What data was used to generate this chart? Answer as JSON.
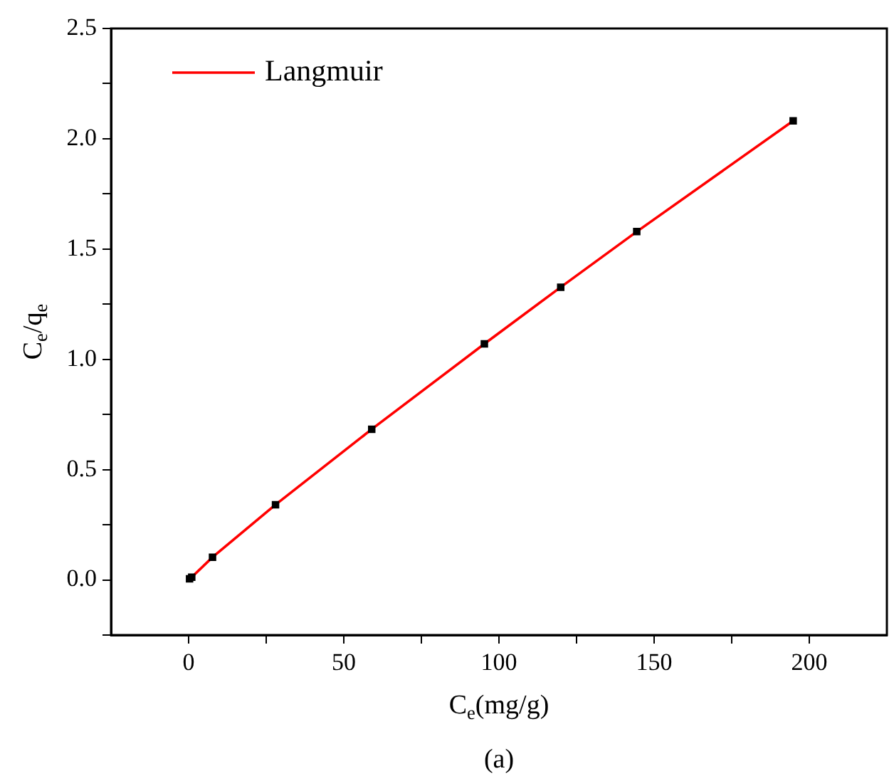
{
  "chart_data": {
    "type": "scatter",
    "xlabel": "C$_{e}$(mg/g)",
    "ylabel": "C$_{e}$/q$_{e}$",
    "annotations": [
      "(a)"
    ],
    "xlim": [
      -25,
      225
    ],
    "xticks": [
      0,
      {
        "value": 25,
        "label": null
      },
      50,
      {
        "value": 75,
        "label": null
      },
      100,
      {
        "value": 125,
        "label": null
      },
      150,
      {
        "value": 175,
        "label": null
      },
      200
    ],
    "ylim": [
      -0.25,
      2.5
    ],
    "yticks": [
      {
        "value": -0.25,
        "label": null
      },
      "0.0",
      {
        "value": 0.25,
        "label": null
      },
      {
        "value": 0.5,
        "label": "0.5"
      },
      {
        "value": 0.75,
        "label": null
      },
      {
        "value": 1,
        "label": "1.0"
      },
      {
        "value": 1.25,
        "label": null
      },
      {
        "value": 1.5,
        "label": "1.5"
      },
      {
        "value": 1.75,
        "label": null
      },
      {
        "value": 2,
        "label": "2.0"
      },
      {
        "value": 2.25,
        "label": null
      },
      {
        "value": 2.5,
        "label": "2.5"
      }
    ],
    "grid": false,
    "legend": "top left",
    "marker": "square",
    "series": [
      {
        "color": "#000000",
        "x": [
          0.3,
          1,
          7.7,
          28,
          59,
          95.3,
          119.9,
          144.4,
          194.8
        ],
        "values": [
          0.005,
          0.012,
          0.103,
          0.341,
          0.683,
          1.07,
          1.327,
          1.579,
          2.081
        ]
      },
      {
        "type": "line",
        "name": "Langmuir",
        "color": "#ff0000",
        "marker": "none",
        "x": [
          0.3,
          1,
          7.7,
          28,
          59,
          95.3,
          119.9,
          144.4,
          194.8
        ],
        "values": [
          0.005,
          0.012,
          0.103,
          0.341,
          0.683,
          1.07,
          1.327,
          1.579,
          2.081
        ]
      }
    ]
  }
}
